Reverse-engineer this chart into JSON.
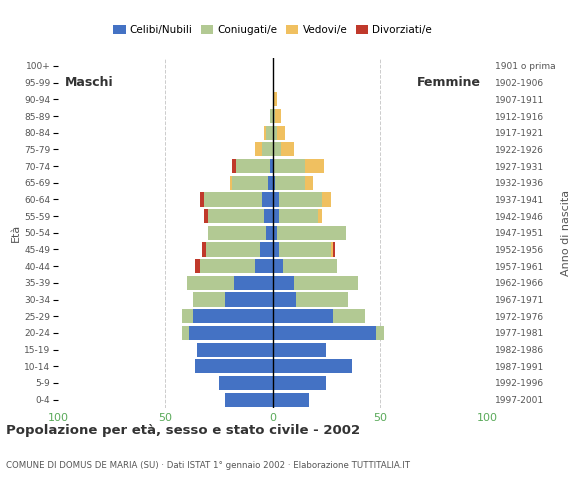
{
  "age_groups": [
    "0-4",
    "5-9",
    "10-14",
    "15-19",
    "20-24",
    "25-29",
    "30-34",
    "35-39",
    "40-44",
    "45-49",
    "50-54",
    "55-59",
    "60-64",
    "65-69",
    "70-74",
    "75-79",
    "80-84",
    "85-89",
    "90-94",
    "95-99",
    "100+"
  ],
  "birth_years": [
    "1997-2001",
    "1992-1996",
    "1987-1991",
    "1982-1986",
    "1977-1981",
    "1972-1976",
    "1967-1971",
    "1962-1966",
    "1957-1961",
    "1952-1956",
    "1947-1951",
    "1942-1946",
    "1937-1941",
    "1932-1936",
    "1927-1931",
    "1922-1926",
    "1917-1921",
    "1912-1916",
    "1907-1911",
    "1902-1906",
    "1901 o prima"
  ],
  "males": {
    "celibe": [
      22,
      25,
      36,
      35,
      39,
      37,
      22,
      18,
      8,
      6,
      3,
      4,
      5,
      2,
      1,
      0,
      0,
      0,
      0,
      0,
      0
    ],
    "coniugato": [
      0,
      0,
      0,
      0,
      3,
      5,
      15,
      22,
      26,
      25,
      27,
      26,
      27,
      17,
      16,
      5,
      3,
      1,
      0,
      0,
      0
    ],
    "vedovo": [
      0,
      0,
      0,
      0,
      0,
      0,
      0,
      0,
      0,
      0,
      0,
      0,
      0,
      1,
      0,
      3,
      1,
      0,
      0,
      0,
      0
    ],
    "divorziato": [
      0,
      0,
      0,
      0,
      0,
      0,
      0,
      0,
      2,
      2,
      0,
      2,
      2,
      0,
      2,
      0,
      0,
      0,
      0,
      0,
      0
    ]
  },
  "females": {
    "nubile": [
      17,
      25,
      37,
      25,
      48,
      28,
      11,
      10,
      5,
      3,
      2,
      3,
      3,
      1,
      0,
      0,
      0,
      0,
      0,
      0,
      0
    ],
    "coniugata": [
      0,
      0,
      0,
      0,
      4,
      15,
      24,
      30,
      25,
      24,
      32,
      18,
      20,
      14,
      15,
      4,
      2,
      1,
      0,
      0,
      0
    ],
    "vedova": [
      0,
      0,
      0,
      0,
      0,
      0,
      0,
      0,
      0,
      1,
      0,
      2,
      4,
      4,
      9,
      6,
      4,
      3,
      2,
      0,
      0
    ],
    "divorziata": [
      0,
      0,
      0,
      0,
      0,
      0,
      0,
      0,
      0,
      1,
      0,
      0,
      0,
      0,
      0,
      0,
      0,
      0,
      0,
      0,
      0
    ]
  },
  "colors": {
    "celibe": "#4472c4",
    "coniugato": "#b2c993",
    "vedovo": "#f0c060",
    "divorziato": "#c0392b"
  },
  "title": "Popolazione per età, sesso e stato civile - 2002",
  "subtitle": "COMUNE DI DOMUS DE MARIA (SU) · Dati ISTAT 1° gennaio 2002 · Elaborazione TUTTITALIA.IT",
  "xlabel_left": "Maschi",
  "xlabel_right": "Femmine",
  "ylabel": "Età",
  "ylabel_right": "Anno di nascita",
  "xlim": 100,
  "legend_labels": [
    "Celibi/Nubili",
    "Coniugati/e",
    "Vedovi/e",
    "Divorziati/e"
  ],
  "background_color": "#ffffff",
  "bar_height": 0.85,
  "xtick_color": "#5aaa5a",
  "grid_color": "#cccccc",
  "label_color": "#555555",
  "text_color": "#333333"
}
